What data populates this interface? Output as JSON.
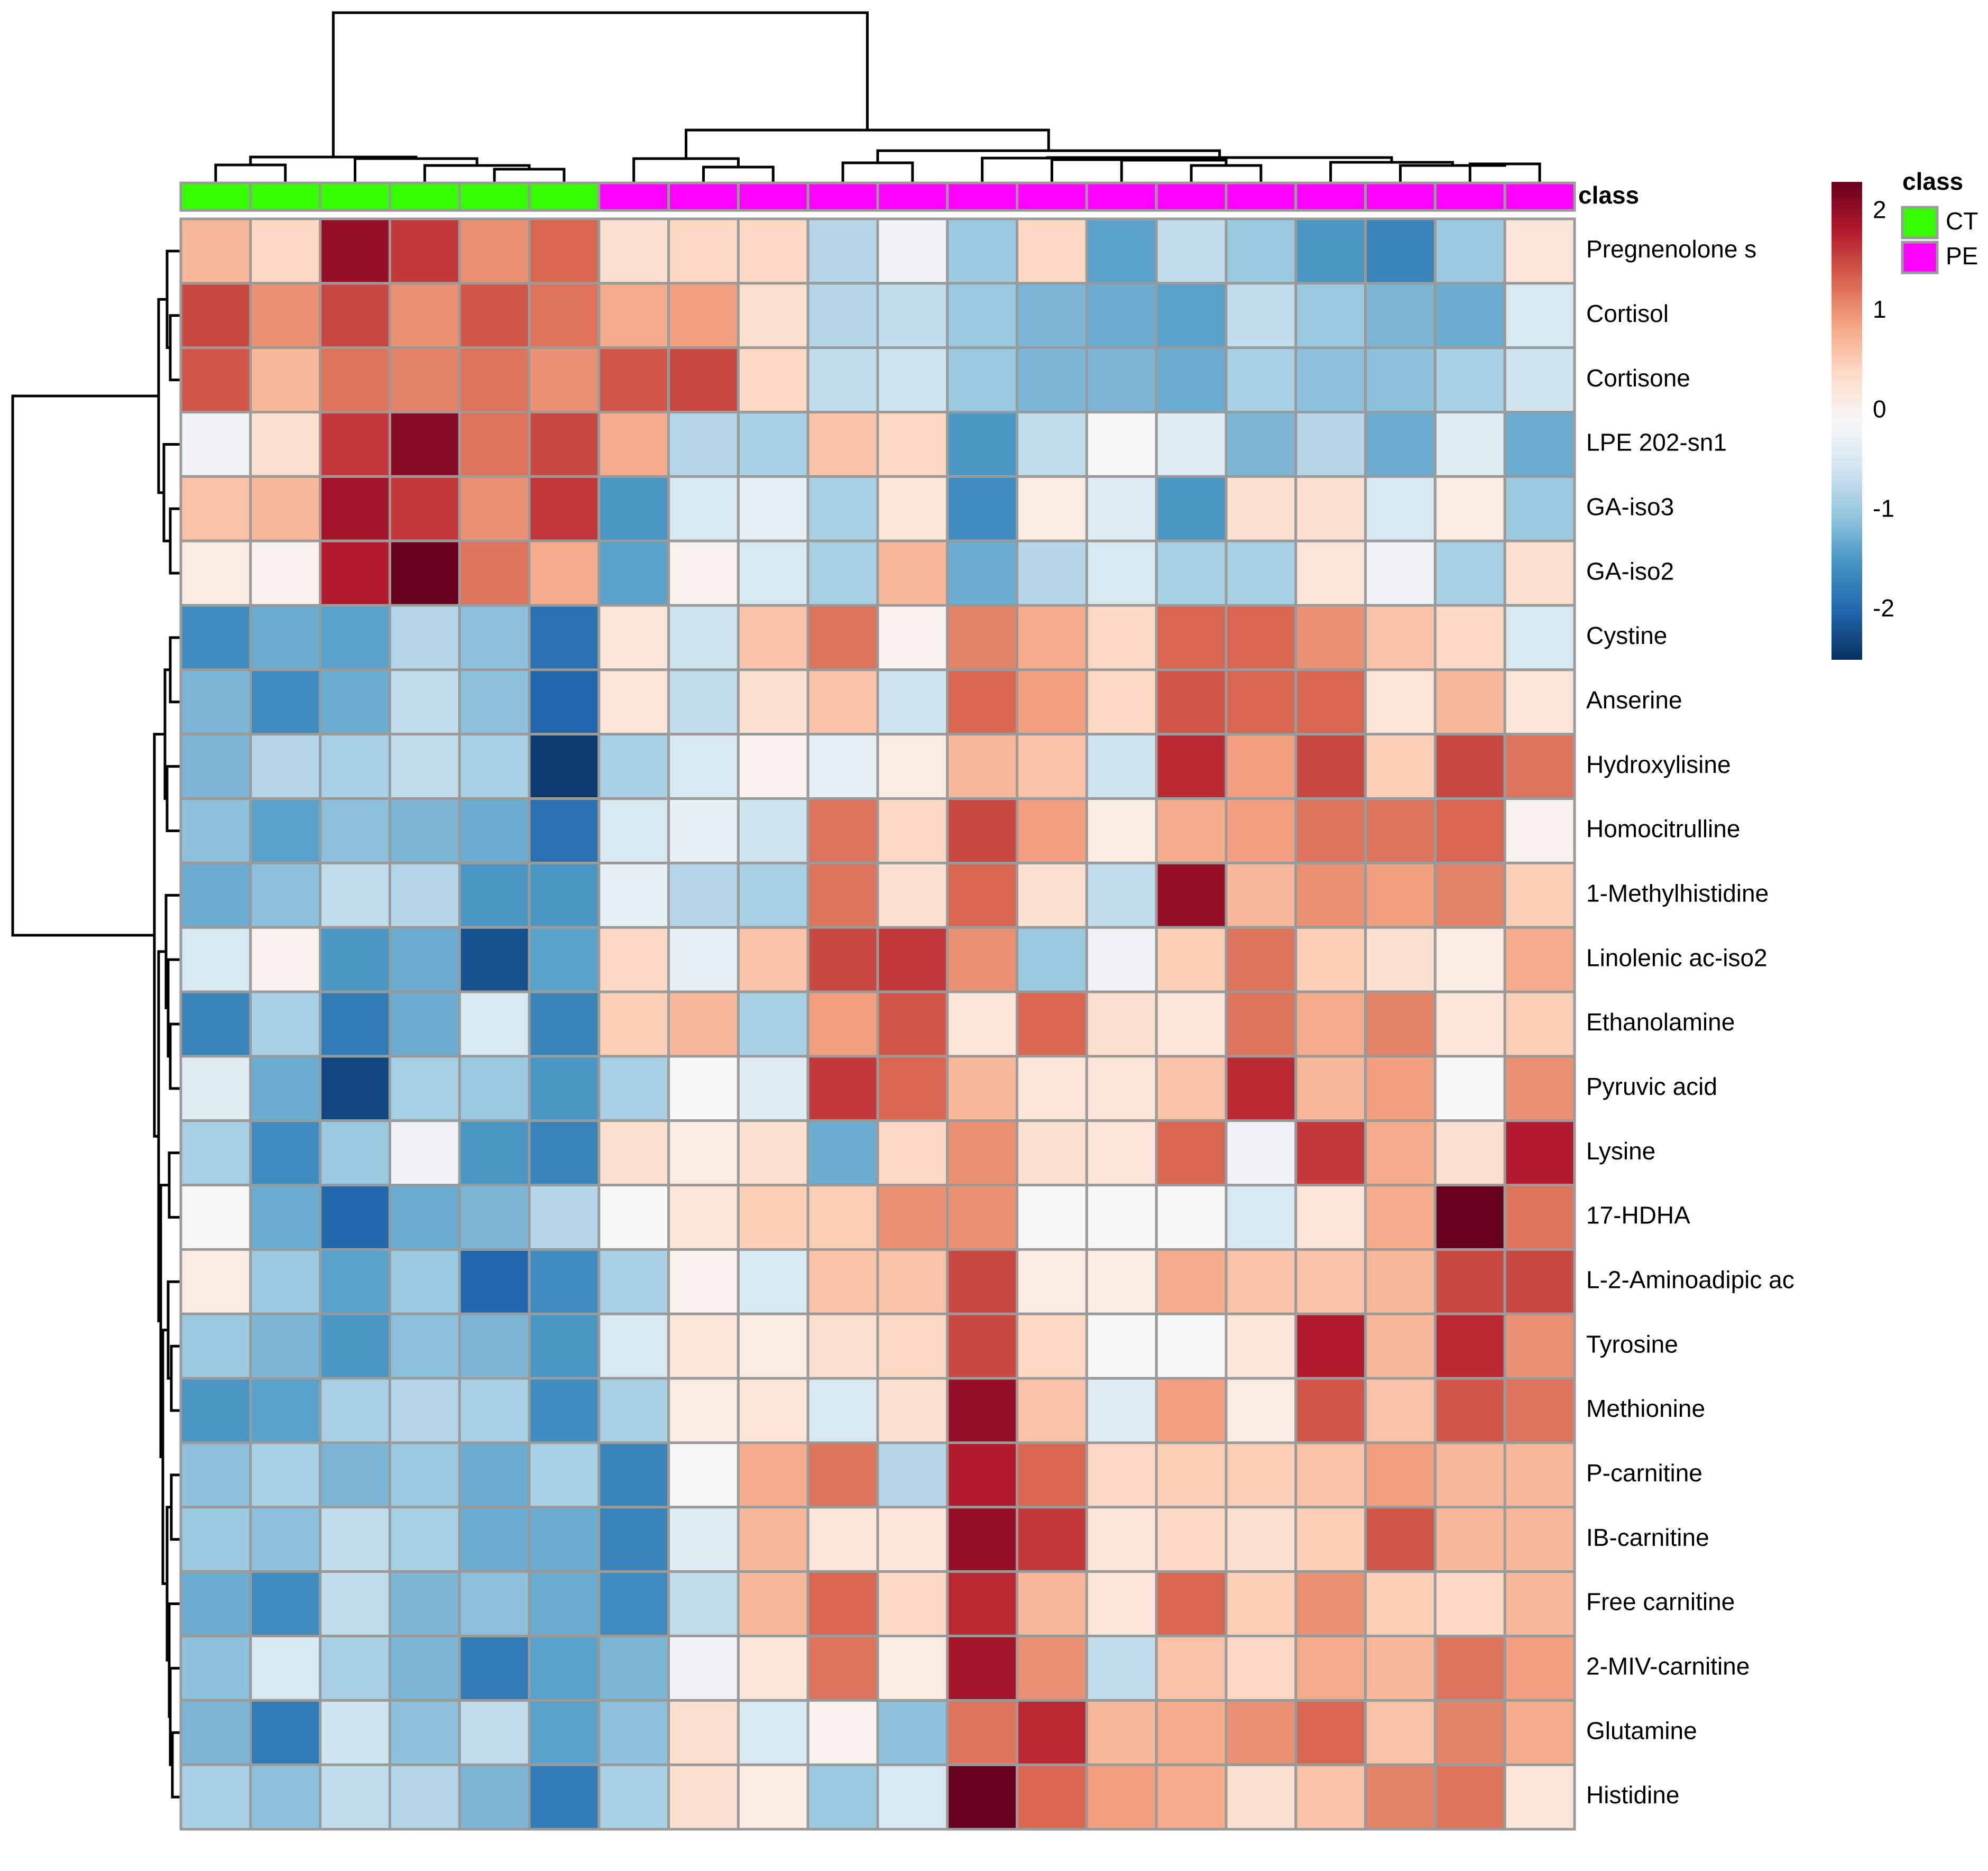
{
  "chart_data": {
    "type": "heatmap",
    "title": "",
    "xlabel": "",
    "ylabel": "",
    "annotation": {
      "title": "class",
      "row_label": "class",
      "levels": [
        {
          "name": "CT",
          "color": "#33ff00"
        },
        {
          "name": "PE",
          "color": "#ff00ff"
        }
      ],
      "columns": [
        "CT",
        "CT",
        "CT",
        "CT",
        "CT",
        "CT",
        "PE",
        "PE",
        "PE",
        "PE",
        "PE",
        "PE",
        "PE",
        "PE",
        "PE",
        "PE",
        "PE",
        "PE",
        "PE",
        "PE"
      ]
    },
    "colorbar": {
      "range": [
        -2.5,
        2.3
      ],
      "ticks": [
        "2",
        "1",
        "0",
        "-1",
        "-2"
      ],
      "tick_values": [
        2,
        1,
        0,
        -1,
        -2
      ],
      "colors": [
        "#053061",
        "#2166ac",
        "#4393c3",
        "#92c5de",
        "#d1e5f0",
        "#f7f7f7",
        "#fddbc7",
        "#f4a582",
        "#d6604d",
        "#b2182b",
        "#67001f"
      ]
    },
    "rows": [
      "Pregnenolone s",
      "Cortisol",
      "Cortisone",
      "LPE 202-sn1",
      "GA-iso3",
      "GA-iso2",
      "Cystine",
      "Anserine",
      "Hydroxylisine",
      "Homocitrulline",
      "1-Methylhistidine",
      "Linolenic ac-iso2",
      "Ethanolamine",
      "Pyruvic acid",
      "Lysine",
      "17-HDHA",
      "L-2-Aminoadipic ac",
      "Tyrosine",
      "Methionine",
      "P-carnitine",
      "IB-carnitine",
      "Free carnitine",
      "2-MIV-carnitine",
      "Glutamine",
      "Histidine"
    ],
    "values": [
      [
        0.7,
        0.4,
        2.0,
        1.6,
        1.0,
        1.3,
        0.3,
        0.4,
        0.4,
        -0.8,
        -0.2,
        -1.0,
        0.4,
        -1.4,
        -0.7,
        -1.0,
        -1.5,
        -1.7,
        -1.0,
        0.2
      ],
      [
        1.5,
        1.0,
        1.5,
        1.0,
        1.4,
        1.2,
        0.8,
        0.9,
        0.3,
        -0.8,
        -0.7,
        -1.0,
        -1.2,
        -1.3,
        -1.4,
        -0.7,
        -1.0,
        -1.2,
        -1.3,
        -0.5
      ],
      [
        1.4,
        0.7,
        1.2,
        1.1,
        1.2,
        1.0,
        1.4,
        1.5,
        0.4,
        -0.7,
        -0.6,
        -1.0,
        -1.2,
        -1.2,
        -1.3,
        -0.9,
        -1.1,
        -1.1,
        -0.9,
        -0.6
      ],
      [
        -0.2,
        0.3,
        1.6,
        2.1,
        1.2,
        1.5,
        0.8,
        -0.8,
        -0.9,
        0.6,
        0.4,
        -1.5,
        -0.7,
        -0.1,
        -0.4,
        -1.2,
        -0.8,
        -1.3,
        -0.4,
        -1.3
      ],
      [
        0.6,
        0.7,
        1.9,
        1.6,
        1.0,
        1.6,
        -1.5,
        -0.5,
        -0.3,
        -0.9,
        0.2,
        -1.6,
        0.1,
        -0.4,
        -1.5,
        0.3,
        0.3,
        -0.5,
        0.1,
        -1.0
      ],
      [
        0.1,
        0.0,
        1.8,
        2.3,
        1.2,
        0.8,
        -1.4,
        0.0,
        -0.5,
        -0.9,
        0.7,
        -1.3,
        -0.8,
        -0.5,
        -0.9,
        -0.9,
        0.2,
        -0.2,
        -0.9,
        0.3
      ],
      [
        -1.6,
        -1.3,
        -1.4,
        -0.8,
        -1.1,
        -1.9,
        0.2,
        -0.6,
        0.6,
        1.2,
        0.0,
        1.1,
        0.8,
        0.4,
        1.3,
        1.3,
        1.0,
        0.6,
        0.4,
        -0.5
      ],
      [
        -1.2,
        -1.6,
        -1.3,
        -0.7,
        -1.1,
        -2.0,
        0.2,
        -0.7,
        0.3,
        0.6,
        -0.6,
        1.3,
        0.9,
        0.4,
        1.4,
        1.3,
        1.3,
        0.2,
        0.7,
        0.2
      ],
      [
        -1.2,
        -0.8,
        -0.9,
        -0.7,
        -0.9,
        -2.4,
        -0.9,
        -0.5,
        0.0,
        -0.3,
        0.1,
        0.7,
        0.6,
        -0.6,
        1.7,
        0.9,
        1.5,
        0.5,
        1.5,
        1.2
      ],
      [
        -1.1,
        -1.4,
        -1.1,
        -1.2,
        -1.3,
        -1.9,
        -0.5,
        -0.3,
        -0.6,
        1.2,
        0.4,
        1.5,
        0.9,
        0.1,
        0.8,
        0.9,
        1.2,
        1.2,
        1.3,
        0.0
      ],
      [
        -1.3,
        -1.1,
        -0.7,
        -0.8,
        -1.5,
        -1.5,
        -0.3,
        -0.8,
        -0.9,
        1.2,
        0.3,
        1.3,
        0.3,
        -0.7,
        2.0,
        0.7,
        1.0,
        0.9,
        1.1,
        0.5
      ],
      [
        -0.5,
        0.0,
        -1.5,
        -1.3,
        -2.2,
        -1.4,
        0.4,
        -0.3,
        0.6,
        1.5,
        1.6,
        1.0,
        -1.0,
        -0.2,
        0.5,
        1.2,
        0.5,
        0.3,
        0.1,
        0.8
      ],
      [
        -1.7,
        -0.9,
        -1.8,
        -1.3,
        -0.5,
        -1.7,
        0.5,
        0.7,
        -0.9,
        0.9,
        1.4,
        0.2,
        1.3,
        0.3,
        0.2,
        1.2,
        0.8,
        1.1,
        0.2,
        0.5
      ],
      [
        -0.4,
        -1.3,
        -2.3,
        -0.9,
        -1.0,
        -1.5,
        -0.9,
        -0.1,
        -0.4,
        1.6,
        1.3,
        0.7,
        0.2,
        0.2,
        0.6,
        1.7,
        0.7,
        0.9,
        -0.1,
        1.0
      ],
      [
        -0.9,
        -1.6,
        -1.0,
        -0.2,
        -1.5,
        -1.7,
        0.3,
        0.1,
        0.3,
        -1.3,
        0.4,
        1.0,
        0.3,
        0.2,
        1.3,
        -0.2,
        1.6,
        0.8,
        0.3,
        1.8
      ],
      [
        -0.1,
        -1.3,
        -2.0,
        -1.3,
        -1.2,
        -0.8,
        -0.1,
        0.2,
        0.5,
        0.5,
        1.0,
        1.0,
        -0.1,
        -0.1,
        -0.1,
        -0.5,
        0.2,
        0.8,
        2.5,
        1.2
      ],
      [
        0.1,
        -1.0,
        -1.4,
        -1.0,
        -2.0,
        -1.6,
        -0.9,
        0.0,
        -0.5,
        0.6,
        0.6,
        1.5,
        0.1,
        0.1,
        0.8,
        0.6,
        0.6,
        0.7,
        1.5,
        1.5
      ],
      [
        -1.0,
        -1.2,
        -1.5,
        -1.1,
        -1.2,
        -1.5,
        -0.5,
        0.2,
        0.1,
        0.3,
        0.4,
        1.5,
        0.4,
        -0.1,
        -0.1,
        0.2,
        1.8,
        0.7,
        1.7,
        1.0
      ],
      [
        -1.5,
        -1.4,
        -0.9,
        -0.8,
        -0.9,
        -1.6,
        -0.9,
        0.1,
        0.2,
        -0.5,
        0.3,
        2.0,
        0.6,
        -0.4,
        0.9,
        0.1,
        1.4,
        0.6,
        1.4,
        1.2
      ],
      [
        -1.1,
        -0.9,
        -1.2,
        -1.0,
        -1.3,
        -0.9,
        -1.7,
        -0.1,
        0.8,
        1.2,
        -0.8,
        1.8,
        1.3,
        0.4,
        0.5,
        0.5,
        0.6,
        0.9,
        0.7,
        0.7
      ],
      [
        -1.0,
        -1.1,
        -0.7,
        -0.9,
        -1.3,
        -1.3,
        -1.7,
        -0.4,
        0.7,
        0.2,
        0.2,
        2.0,
        1.6,
        0.2,
        0.4,
        0.3,
        0.5,
        1.4,
        0.7,
        0.7
      ],
      [
        -1.3,
        -1.6,
        -0.7,
        -1.2,
        -1.1,
        -1.3,
        -1.6,
        -0.7,
        0.7,
        1.3,
        0.4,
        1.7,
        0.7,
        0.2,
        1.3,
        0.5,
        1.0,
        0.5,
        0.4,
        0.7
      ],
      [
        -1.1,
        -0.5,
        -0.9,
        -1.2,
        -1.8,
        -1.4,
        -1.2,
        -0.2,
        0.2,
        1.2,
        0.1,
        1.9,
        1.0,
        -0.7,
        0.6,
        0.4,
        0.8,
        0.7,
        1.2,
        0.9
      ],
      [
        -1.2,
        -1.8,
        -0.6,
        -1.1,
        -0.7,
        -1.4,
        -1.1,
        0.3,
        -0.5,
        0.0,
        -1.1,
        1.2,
        1.7,
        0.7,
        0.8,
        1.0,
        1.3,
        0.6,
        1.1,
        0.8
      ],
      [
        -0.9,
        -1.1,
        -0.7,
        -0.8,
        -1.2,
        -1.8,
        -0.9,
        0.3,
        0.1,
        -1.0,
        -0.5,
        2.3,
        1.3,
        0.9,
        0.8,
        0.3,
        0.6,
        1.1,
        1.2,
        0.2
      ]
    ]
  }
}
